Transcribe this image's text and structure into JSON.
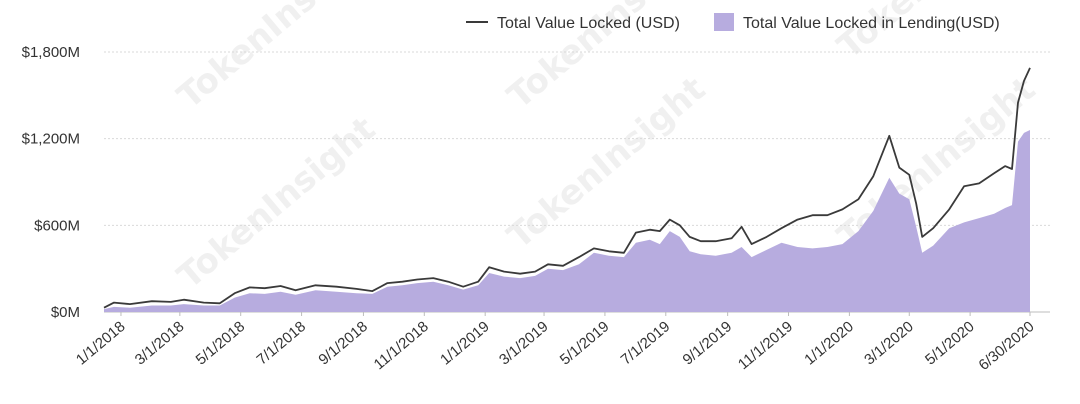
{
  "chart_data": {
    "type": "area",
    "watermark": "TokenInsight",
    "legend": {
      "placement": "top-right",
      "items": [
        {
          "label": "Total Value Locked (USD)",
          "kind": "line",
          "color": "#3a3a3a"
        },
        {
          "label": "Total Value Locked in Lending(USD)",
          "kind": "area",
          "color": "#b7acdf"
        }
      ]
    },
    "y_axis": {
      "min": 0,
      "max": 1800,
      "ticks": [
        0,
        600,
        1200,
        1800
      ],
      "tick_labels": [
        "$0M",
        "$600M",
        "$1,200M",
        "$1,800M"
      ],
      "grid": true
    },
    "x_axis": {
      "start": "2017-12-15",
      "end": "2020-06-30",
      "ticks": [
        "2018-01-01",
        "2018-03-01",
        "2018-05-01",
        "2018-07-01",
        "2018-09-01",
        "2018-11-01",
        "2019-01-01",
        "2019-03-01",
        "2019-05-01",
        "2019-07-01",
        "2019-09-01",
        "2019-11-01",
        "2020-01-01",
        "2020-03-01",
        "2020-05-01",
        "2020-06-30"
      ],
      "tick_labels": [
        "1/1/2018",
        "3/1/2018",
        "5/1/2018",
        "7/1/2018",
        "9/1/2018",
        "11/1/2018",
        "1/1/2019",
        "3/1/2019",
        "5/1/2019",
        "7/1/2019",
        "9/1/2019",
        "11/1/2019",
        "1/1/2020",
        "3/1/2020",
        "5/1/2020",
        "6/30/2020"
      ]
    },
    "series": [
      {
        "name": "Total Value Locked (USD)",
        "type": "line",
        "color": "#3a3a3a",
        "points": [
          [
            "2017-12-15",
            30
          ],
          [
            "2017-12-25",
            65
          ],
          [
            "2018-01-10",
            55
          ],
          [
            "2018-02-01",
            75
          ],
          [
            "2018-02-20",
            70
          ],
          [
            "2018-03-05",
            85
          ],
          [
            "2018-03-25",
            65
          ],
          [
            "2018-04-10",
            60
          ],
          [
            "2018-04-25",
            130
          ],
          [
            "2018-05-10",
            170
          ],
          [
            "2018-05-25",
            165
          ],
          [
            "2018-06-10",
            180
          ],
          [
            "2018-06-25",
            150
          ],
          [
            "2018-07-15",
            185
          ],
          [
            "2018-08-05",
            175
          ],
          [
            "2018-08-25",
            160
          ],
          [
            "2018-09-10",
            145
          ],
          [
            "2018-09-25",
            200
          ],
          [
            "2018-10-10",
            210
          ],
          [
            "2018-10-25",
            225
          ],
          [
            "2018-11-10",
            235
          ],
          [
            "2018-11-25",
            210
          ],
          [
            "2018-12-10",
            175
          ],
          [
            "2018-12-25",
            210
          ],
          [
            "2019-01-05",
            310
          ],
          [
            "2019-01-20",
            280
          ],
          [
            "2019-02-05",
            265
          ],
          [
            "2019-02-20",
            280
          ],
          [
            "2019-03-05",
            330
          ],
          [
            "2019-03-20",
            320
          ],
          [
            "2019-04-05",
            380
          ],
          [
            "2019-04-20",
            440
          ],
          [
            "2019-05-05",
            420
          ],
          [
            "2019-05-20",
            410
          ],
          [
            "2019-06-01",
            550
          ],
          [
            "2019-06-15",
            570
          ],
          [
            "2019-06-25",
            560
          ],
          [
            "2019-07-05",
            640
          ],
          [
            "2019-07-15",
            600
          ],
          [
            "2019-07-25",
            520
          ],
          [
            "2019-08-05",
            490
          ],
          [
            "2019-08-20",
            490
          ],
          [
            "2019-09-05",
            510
          ],
          [
            "2019-09-15",
            590
          ],
          [
            "2019-09-25",
            470
          ],
          [
            "2019-10-10",
            520
          ],
          [
            "2019-10-25",
            580
          ],
          [
            "2019-11-10",
            640
          ],
          [
            "2019-11-25",
            670
          ],
          [
            "2019-12-10",
            670
          ],
          [
            "2019-12-25",
            710
          ],
          [
            "2020-01-10",
            780
          ],
          [
            "2020-01-25",
            940
          ],
          [
            "2020-02-10",
            1220
          ],
          [
            "2020-02-20",
            1000
          ],
          [
            "2020-03-01",
            950
          ],
          [
            "2020-03-08",
            750
          ],
          [
            "2020-03-14",
            520
          ],
          [
            "2020-03-25",
            580
          ],
          [
            "2020-04-10",
            710
          ],
          [
            "2020-04-25",
            870
          ],
          [
            "2020-05-10",
            890
          ],
          [
            "2020-05-25",
            960
          ],
          [
            "2020-06-05",
            1010
          ],
          [
            "2020-06-12",
            990
          ],
          [
            "2020-06-18",
            1450
          ],
          [
            "2020-06-24",
            1600
          ],
          [
            "2020-06-30",
            1690
          ]
        ]
      },
      {
        "name": "Total Value Locked in Lending(USD)",
        "type": "area",
        "color": "#b7acdf",
        "points": [
          [
            "2017-12-15",
            20
          ],
          [
            "2017-12-25",
            35
          ],
          [
            "2018-01-10",
            30
          ],
          [
            "2018-02-01",
            45
          ],
          [
            "2018-02-20",
            45
          ],
          [
            "2018-03-05",
            55
          ],
          [
            "2018-03-25",
            45
          ],
          [
            "2018-04-10",
            45
          ],
          [
            "2018-04-25",
            100
          ],
          [
            "2018-05-10",
            130
          ],
          [
            "2018-05-25",
            125
          ],
          [
            "2018-06-10",
            140
          ],
          [
            "2018-06-25",
            120
          ],
          [
            "2018-07-15",
            150
          ],
          [
            "2018-08-05",
            140
          ],
          [
            "2018-08-25",
            130
          ],
          [
            "2018-09-10",
            125
          ],
          [
            "2018-09-25",
            175
          ],
          [
            "2018-10-10",
            185
          ],
          [
            "2018-10-25",
            200
          ],
          [
            "2018-11-10",
            210
          ],
          [
            "2018-11-25",
            185
          ],
          [
            "2018-12-10",
            155
          ],
          [
            "2018-12-25",
            185
          ],
          [
            "2019-01-05",
            270
          ],
          [
            "2019-01-20",
            245
          ],
          [
            "2019-02-05",
            235
          ],
          [
            "2019-02-20",
            250
          ],
          [
            "2019-03-05",
            300
          ],
          [
            "2019-03-20",
            290
          ],
          [
            "2019-04-05",
            330
          ],
          [
            "2019-04-20",
            410
          ],
          [
            "2019-05-05",
            390
          ],
          [
            "2019-05-20",
            380
          ],
          [
            "2019-06-01",
            480
          ],
          [
            "2019-06-15",
            500
          ],
          [
            "2019-06-25",
            470
          ],
          [
            "2019-07-05",
            560
          ],
          [
            "2019-07-15",
            520
          ],
          [
            "2019-07-25",
            420
          ],
          [
            "2019-08-05",
            400
          ],
          [
            "2019-08-20",
            390
          ],
          [
            "2019-09-05",
            410
          ],
          [
            "2019-09-15",
            450
          ],
          [
            "2019-09-25",
            380
          ],
          [
            "2019-10-10",
            430
          ],
          [
            "2019-10-25",
            480
          ],
          [
            "2019-11-10",
            450
          ],
          [
            "2019-11-25",
            440
          ],
          [
            "2019-12-10",
            450
          ],
          [
            "2019-12-25",
            470
          ],
          [
            "2020-01-10",
            560
          ],
          [
            "2020-01-25",
            700
          ],
          [
            "2020-02-10",
            930
          ],
          [
            "2020-02-20",
            820
          ],
          [
            "2020-03-01",
            780
          ],
          [
            "2020-03-08",
            590
          ],
          [
            "2020-03-14",
            410
          ],
          [
            "2020-03-25",
            460
          ],
          [
            "2020-04-10",
            580
          ],
          [
            "2020-04-25",
            620
          ],
          [
            "2020-05-10",
            650
          ],
          [
            "2020-05-25",
            680
          ],
          [
            "2020-06-05",
            720
          ],
          [
            "2020-06-12",
            740
          ],
          [
            "2020-06-18",
            1180
          ],
          [
            "2020-06-24",
            1240
          ],
          [
            "2020-06-30",
            1260
          ]
        ]
      }
    ]
  }
}
